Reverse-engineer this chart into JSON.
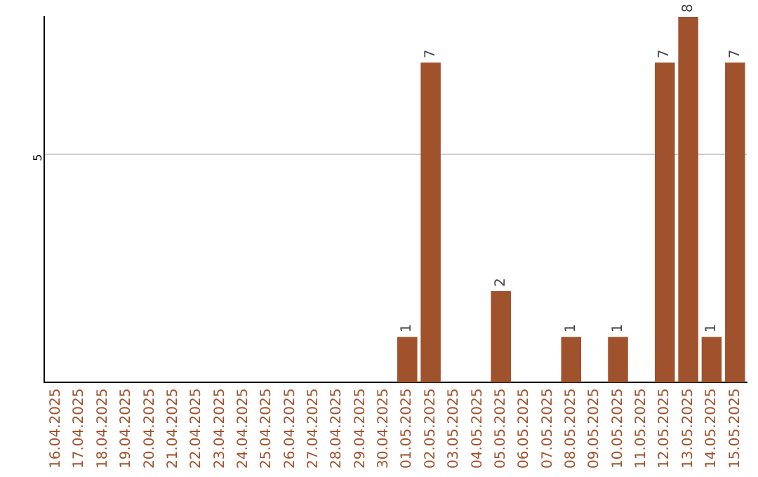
{
  "chart_data": {
    "type": "bar",
    "categories": [
      "16.04.2025",
      "17.04.2025",
      "18.04.2025",
      "19.04.2025",
      "20.04.2025",
      "21.04.2025",
      "22.04.2025",
      "23.04.2025",
      "24.04.2025",
      "25.04.2025",
      "26.04.2025",
      "27.04.2025",
      "28.04.2025",
      "29.04.2025",
      "30.04.2025",
      "01.05.2025",
      "02.05.2025",
      "03.05.2025",
      "04.05.2025",
      "05.05.2025",
      "06.05.2025",
      "07.05.2025",
      "08.05.2025",
      "09.05.2025",
      "10.05.2025",
      "11.05.2025",
      "12.05.2025",
      "13.05.2025",
      "14.05.2025",
      "15.05.2025"
    ],
    "values": [
      null,
      null,
      null,
      null,
      null,
      null,
      null,
      null,
      null,
      null,
      null,
      null,
      null,
      null,
      null,
      1,
      7,
      null,
      null,
      2,
      null,
      null,
      1,
      null,
      1,
      null,
      7,
      8,
      1,
      7
    ],
    "data_labels": true,
    "color": "#a0522d",
    "ylim": [
      0,
      8
    ],
    "yticks": [
      5
    ],
    "grid": "y"
  }
}
